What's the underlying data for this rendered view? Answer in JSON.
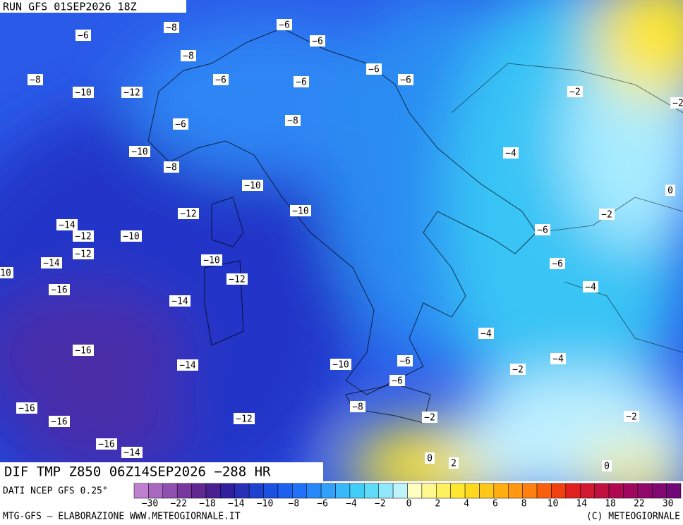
{
  "header": {
    "run": "RUN GFS 01SEP2026 18Z",
    "field": "DIF TMP Z850 06Z14SEP2026 −288 HR"
  },
  "contour_labels": [
    "−6",
    "−8",
    "−6",
    "−6",
    "−8",
    "−6",
    "−6",
    "−6",
    "−6",
    "−8",
    "−10",
    "−12",
    "−2",
    "−6",
    "−8",
    "−10",
    "−4",
    "−8",
    "−10",
    "0",
    "−12",
    "−10",
    "−2",
    "−14",
    "−12",
    "−10",
    "−6",
    "−12",
    "−14",
    "−6",
    "10",
    "−10",
    "−12",
    "−4",
    "−16",
    "−14",
    "−4",
    "−16",
    "−4",
    "−14",
    "−10",
    "−6",
    "−2",
    "−6",
    "−16",
    "−8",
    "−12",
    "−2",
    "−2",
    "−16",
    "−16",
    "−14",
    "0",
    "2",
    "0",
    "−2"
  ],
  "colorbar": {
    "source": "DATI NCEP GFS 0.25°",
    "labels": [
      "−30",
      "−22",
      "−18",
      "−14",
      "−10",
      "−8",
      "−6",
      "−4",
      "−2",
      "0",
      "2",
      "4",
      "6",
      "8",
      "10",
      "14",
      "18",
      "22",
      "30"
    ]
  },
  "footer": {
    "left": "MTG-GFS – ELABORAZIONE WWW.METEOGIORNALE.IT",
    "right": "(C) METEOGIORNALE"
  }
}
